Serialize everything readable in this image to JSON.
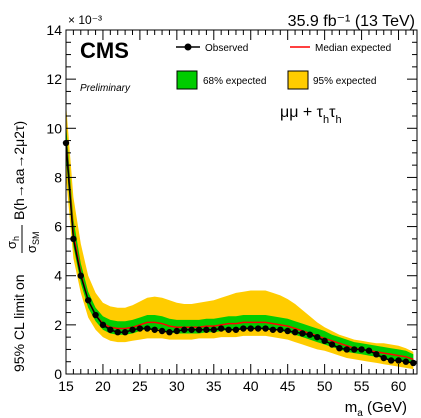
{
  "chart_data": {
    "type": "line",
    "header_right": "35.9 fb⁻¹ (13 TeV)",
    "experiment": "CMS",
    "status": "Preliminary",
    "channel": "μμ + τhτh",
    "multiplier": "× 10⁻³",
    "xlabel": "m_a (GeV)",
    "ylabel": "95% CL limit on (σh/σSM) B(h→aa→2μ2τ)",
    "xlim": [
      15,
      62.5
    ],
    "ylim": [
      0,
      14
    ],
    "x_ticks": [
      15,
      20,
      25,
      30,
      35,
      40,
      45,
      50,
      55,
      60
    ],
    "y_ticks": [
      0,
      2,
      4,
      6,
      8,
      10,
      12,
      14
    ],
    "legend_position": "top-left",
    "legend": [
      "Observed",
      "Median expected",
      "68% expected",
      "95% expected"
    ],
    "colors": {
      "observed": "#000000",
      "median": "#ff0000",
      "band68": "#00cc00",
      "band95": "#ffcc00"
    },
    "x": [
      15,
      16,
      17,
      18,
      19,
      20,
      21,
      22,
      23,
      24,
      25,
      26,
      27,
      28,
      29,
      30,
      31,
      32,
      33,
      34,
      35,
      36,
      37,
      38,
      39,
      40,
      41,
      42,
      43,
      44,
      45,
      46,
      47,
      48,
      49,
      50,
      51,
      52,
      53,
      54,
      55,
      56,
      57,
      58,
      59,
      60,
      61,
      62
    ],
    "series": [
      {
        "name": "Observed",
        "values": [
          9.4,
          5.5,
          4.0,
          3.0,
          2.4,
          2.0,
          1.8,
          1.7,
          1.7,
          1.8,
          1.85,
          1.85,
          1.8,
          1.75,
          1.7,
          1.75,
          1.8,
          1.8,
          1.8,
          1.8,
          1.8,
          1.85,
          1.8,
          1.8,
          1.85,
          1.85,
          1.85,
          1.85,
          1.8,
          1.8,
          1.75,
          1.7,
          1.65,
          1.6,
          1.5,
          1.35,
          1.2,
          1.05,
          1.0,
          1.0,
          1.0,
          0.95,
          0.8,
          0.65,
          0.55,
          0.55,
          0.5,
          0.45
        ]
      },
      {
        "name": "Median expected",
        "values": [
          9.5,
          5.7,
          4.1,
          3.0,
          2.4,
          2.05,
          1.9,
          1.85,
          1.85,
          1.9,
          2.0,
          2.1,
          2.1,
          2.05,
          1.95,
          1.9,
          1.9,
          1.9,
          1.9,
          1.95,
          1.95,
          2.0,
          2.05,
          2.05,
          2.1,
          2.1,
          2.1,
          2.1,
          2.05,
          2.0,
          1.95,
          1.85,
          1.75,
          1.65,
          1.55,
          1.45,
          1.35,
          1.25,
          1.15,
          1.05,
          1.0,
          0.95,
          0.9,
          0.85,
          0.8,
          0.75,
          0.7,
          0.6
        ]
      }
    ],
    "band68": {
      "lower": [
        8.8,
        5.2,
        3.7,
        2.7,
        2.15,
        1.8,
        1.65,
        1.6,
        1.6,
        1.65,
        1.75,
        1.85,
        1.85,
        1.8,
        1.7,
        1.65,
        1.65,
        1.65,
        1.65,
        1.7,
        1.7,
        1.75,
        1.8,
        1.8,
        1.85,
        1.85,
        1.85,
        1.85,
        1.8,
        1.75,
        1.7,
        1.6,
        1.5,
        1.4,
        1.3,
        1.2,
        1.1,
        1.0,
        0.9,
        0.85,
        0.8,
        0.75,
        0.7,
        0.65,
        0.6,
        0.55,
        0.5,
        0.45
      ],
      "upper": [
        10.2,
        6.3,
        4.5,
        3.35,
        2.7,
        2.35,
        2.2,
        2.15,
        2.15,
        2.2,
        2.3,
        2.4,
        2.4,
        2.35,
        2.25,
        2.2,
        2.2,
        2.2,
        2.2,
        2.25,
        2.25,
        2.3,
        2.35,
        2.35,
        2.4,
        2.4,
        2.4,
        2.4,
        2.35,
        2.3,
        2.25,
        2.15,
        2.05,
        1.95,
        1.85,
        1.75,
        1.6,
        1.5,
        1.4,
        1.3,
        1.25,
        1.2,
        1.15,
        1.1,
        1.05,
        1.0,
        0.95,
        0.8
      ]
    },
    "band95": {
      "lower": [
        8.0,
        4.7,
        3.3,
        2.3,
        1.8,
        1.5,
        1.35,
        1.3,
        1.3,
        1.35,
        1.4,
        1.45,
        1.45,
        1.45,
        1.4,
        1.4,
        1.4,
        1.4,
        1.45,
        1.45,
        1.45,
        1.5,
        1.5,
        1.5,
        1.55,
        1.55,
        1.55,
        1.55,
        1.5,
        1.45,
        1.4,
        1.3,
        1.2,
        1.1,
        1.0,
        0.95,
        0.85,
        0.75,
        0.65,
        0.6,
        0.55,
        0.5,
        0.45,
        0.4,
        0.35,
        0.3,
        0.25,
        0.2
      ],
      "upper": [
        11.0,
        7.2,
        5.3,
        4.0,
        3.3,
        2.9,
        2.75,
        2.7,
        2.7,
        2.8,
        2.95,
        3.1,
        3.15,
        3.1,
        3.0,
        2.9,
        2.85,
        2.85,
        2.9,
        2.95,
        3.0,
        3.1,
        3.2,
        3.3,
        3.35,
        3.4,
        3.4,
        3.4,
        3.3,
        3.2,
        3.05,
        2.85,
        2.6,
        2.35,
        2.1,
        1.9,
        1.75,
        1.6,
        1.5,
        1.4,
        1.35,
        1.3,
        1.25,
        1.25,
        1.2,
        1.15,
        1.05,
        0.9
      ]
    },
    "grid": false
  }
}
